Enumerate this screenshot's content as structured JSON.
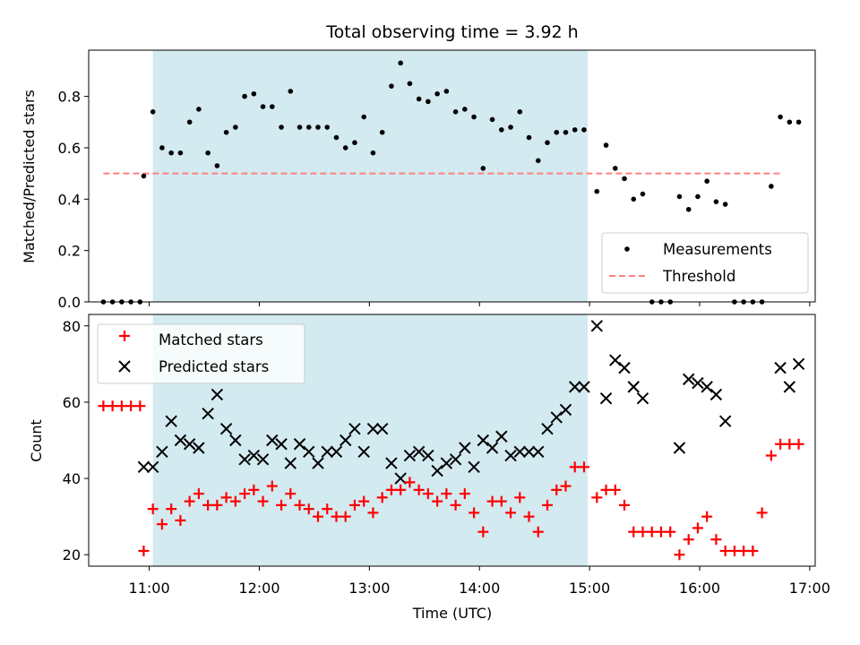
{
  "chart_data": [
    {
      "panel": "top",
      "type": "scatter",
      "title": "Total observing time = 3.92 h",
      "ylabel": "Matched/Predicted stars",
      "xlabel": "",
      "xlim": [
        "10:27",
        "17:03"
      ],
      "ylim": [
        0.0,
        0.98
      ],
      "yticks": [
        0.0,
        0.2,
        0.4,
        0.6,
        0.8
      ],
      "ytick_labels": [
        "0.0",
        "0.2",
        "0.4",
        "0.6",
        "0.8"
      ],
      "xticks": [
        "11:00",
        "12:00",
        "13:00",
        "14:00",
        "15:00",
        "16:00",
        "17:00"
      ],
      "legend_position": "lower-right",
      "shaded_span": {
        "x": [
          "11:02",
          "14:59"
        ],
        "color": "#d3eaf0"
      },
      "series": [
        {
          "name": "Measurements",
          "color": "#000000",
          "marker": "dot",
          "x": [
            "10:35",
            "10:40",
            "10:45",
            "10:50",
            "10:55",
            "10:57",
            "11:02",
            "11:07",
            "11:12",
            "11:17",
            "11:22",
            "11:27",
            "11:32",
            "11:37",
            "11:42",
            "11:47",
            "11:52",
            "11:57",
            "12:02",
            "12:07",
            "12:12",
            "12:17",
            "12:22",
            "12:27",
            "12:32",
            "12:37",
            "12:42",
            "12:47",
            "12:52",
            "12:57",
            "13:02",
            "13:07",
            "13:12",
            "13:17",
            "13:22",
            "13:27",
            "13:32",
            "13:37",
            "13:42",
            "13:47",
            "13:52",
            "13:57",
            "14:02",
            "14:07",
            "14:12",
            "14:17",
            "14:22",
            "14:27",
            "14:32",
            "14:37",
            "14:42",
            "14:47",
            "14:52",
            "14:57",
            "15:04",
            "15:09",
            "15:14",
            "15:19",
            "15:24",
            "15:29",
            "15:34",
            "15:39",
            "15:44",
            "15:49",
            "15:54",
            "15:59",
            "16:04",
            "16:09",
            "16:14",
            "16:19",
            "16:24",
            "16:29",
            "16:34",
            "16:39",
            "16:44",
            "16:49",
            "16:54"
          ],
          "y": [
            0.0,
            0.0,
            0.0,
            0.0,
            0.0,
            0.49,
            0.74,
            0.6,
            0.58,
            0.58,
            0.7,
            0.75,
            0.58,
            0.53,
            0.66,
            0.68,
            0.8,
            0.81,
            0.76,
            0.76,
            0.68,
            0.82,
            0.68,
            0.68,
            0.68,
            0.68,
            0.64,
            0.6,
            0.62,
            0.72,
            0.58,
            0.66,
            0.84,
            0.93,
            0.85,
            0.79,
            0.78,
            0.81,
            0.82,
            0.74,
            0.75,
            0.72,
            0.52,
            0.71,
            0.67,
            0.68,
            0.74,
            0.64,
            0.55,
            0.62,
            0.66,
            0.66,
            0.67,
            0.67,
            0.43,
            0.61,
            0.52,
            0.48,
            0.4,
            0.42,
            0.0,
            0.0,
            0.0,
            0.41,
            0.36,
            0.41,
            0.47,
            0.39,
            0.38,
            0.0,
            0.0,
            0.0,
            0.0,
            0.45,
            0.72,
            0.7,
            0.7
          ]
        },
        {
          "name": "Threshold",
          "color": "#ff7f7f",
          "marker": "dashed-line",
          "x": [
            "10:35",
            "16:44"
          ],
          "y": [
            0.5,
            0.5
          ]
        }
      ]
    },
    {
      "panel": "bottom",
      "type": "scatter",
      "title": "",
      "ylabel": "Count",
      "xlabel": "Time (UTC)",
      "xlim": [
        "10:27",
        "17:03"
      ],
      "ylim": [
        17,
        83
      ],
      "yticks": [
        20,
        40,
        60,
        80
      ],
      "ytick_labels": [
        "20",
        "40",
        "60",
        "80"
      ],
      "xticks": [
        "11:00",
        "12:00",
        "13:00",
        "14:00",
        "15:00",
        "16:00",
        "17:00"
      ],
      "xtick_labels": [
        "11:00",
        "12:00",
        "13:00",
        "14:00",
        "15:00",
        "16:00",
        "17:00"
      ],
      "legend_position": "upper-left",
      "shaded_span": {
        "x": [
          "11:02",
          "14:59"
        ],
        "color": "#d3eaf0"
      },
      "series": [
        {
          "name": "Matched stars",
          "color": "#ff0000",
          "marker": "plus",
          "x": [
            "10:35",
            "10:40",
            "10:45",
            "10:50",
            "10:55",
            "10:57",
            "11:02",
            "11:07",
            "11:12",
            "11:17",
            "11:22",
            "11:27",
            "11:32",
            "11:37",
            "11:42",
            "11:47",
            "11:52",
            "11:57",
            "12:02",
            "12:07",
            "12:12",
            "12:17",
            "12:22",
            "12:27",
            "12:32",
            "12:37",
            "12:42",
            "12:47",
            "12:52",
            "12:57",
            "13:02",
            "13:07",
            "13:12",
            "13:17",
            "13:22",
            "13:27",
            "13:32",
            "13:37",
            "13:42",
            "13:47",
            "13:52",
            "13:57",
            "14:02",
            "14:07",
            "14:12",
            "14:17",
            "14:22",
            "14:27",
            "14:32",
            "14:37",
            "14:42",
            "14:47",
            "14:52",
            "14:57",
            "15:04",
            "15:09",
            "15:14",
            "15:19",
            "15:24",
            "15:29",
            "15:34",
            "15:39",
            "15:44",
            "15:49",
            "15:54",
            "15:59",
            "16:04",
            "16:09",
            "16:14",
            "16:19",
            "16:24",
            "16:29",
            "16:34",
            "16:39",
            "16:44",
            "16:49",
            "16:54"
          ],
          "y": [
            59,
            59,
            59,
            59,
            59,
            21,
            32,
            28,
            32,
            29,
            34,
            36,
            33,
            33,
            35,
            34,
            36,
            37,
            34,
            38,
            33,
            36,
            33,
            32,
            30,
            32,
            30,
            30,
            33,
            34,
            31,
            35,
            37,
            37,
            39,
            37,
            36,
            34,
            36,
            33,
            36,
            31,
            26,
            34,
            34,
            31,
            35,
            30,
            26,
            33,
            37,
            38,
            43,
            43,
            35,
            37,
            37,
            33,
            26,
            26,
            26,
            26,
            26,
            20,
            24,
            27,
            30,
            24,
            21,
            21,
            21,
            21,
            31,
            46,
            49,
            49,
            49
          ]
        },
        {
          "name": "Predicted stars",
          "color": "#000000",
          "marker": "x",
          "x": [
            "10:57",
            "11:02",
            "11:07",
            "11:12",
            "11:17",
            "11:22",
            "11:27",
            "11:32",
            "11:37",
            "11:42",
            "11:47",
            "11:52",
            "11:57",
            "12:02",
            "12:07",
            "12:12",
            "12:17",
            "12:22",
            "12:27",
            "12:32",
            "12:37",
            "12:42",
            "12:47",
            "12:52",
            "12:57",
            "13:02",
            "13:07",
            "13:12",
            "13:17",
            "13:22",
            "13:27",
            "13:32",
            "13:37",
            "13:42",
            "13:47",
            "13:52",
            "13:57",
            "14:02",
            "14:07",
            "14:12",
            "14:17",
            "14:22",
            "14:27",
            "14:32",
            "14:37",
            "14:42",
            "14:47",
            "14:52",
            "14:57",
            "15:04",
            "15:09",
            "15:14",
            "15:19",
            "15:24",
            "15:29",
            "15:49",
            "15:54",
            "15:59",
            "16:04",
            "16:09",
            "16:14",
            "16:44",
            "16:49",
            "16:54"
          ],
          "y": [
            43,
            43,
            47,
            55,
            50,
            49,
            48,
            57,
            62,
            53,
            50,
            45,
            46,
            45,
            50,
            49,
            44,
            49,
            47,
            44,
            47,
            47,
            50,
            53,
            47,
            53,
            53,
            44,
            40,
            46,
            47,
            46,
            42,
            44,
            45,
            48,
            43,
            50,
            48,
            51,
            46,
            47,
            47,
            47,
            53,
            56,
            58,
            64,
            64,
            80,
            61,
            71,
            69,
            64,
            61,
            48,
            66,
            65,
            64,
            62,
            55,
            69,
            64,
            70
          ]
        }
      ]
    }
  ]
}
